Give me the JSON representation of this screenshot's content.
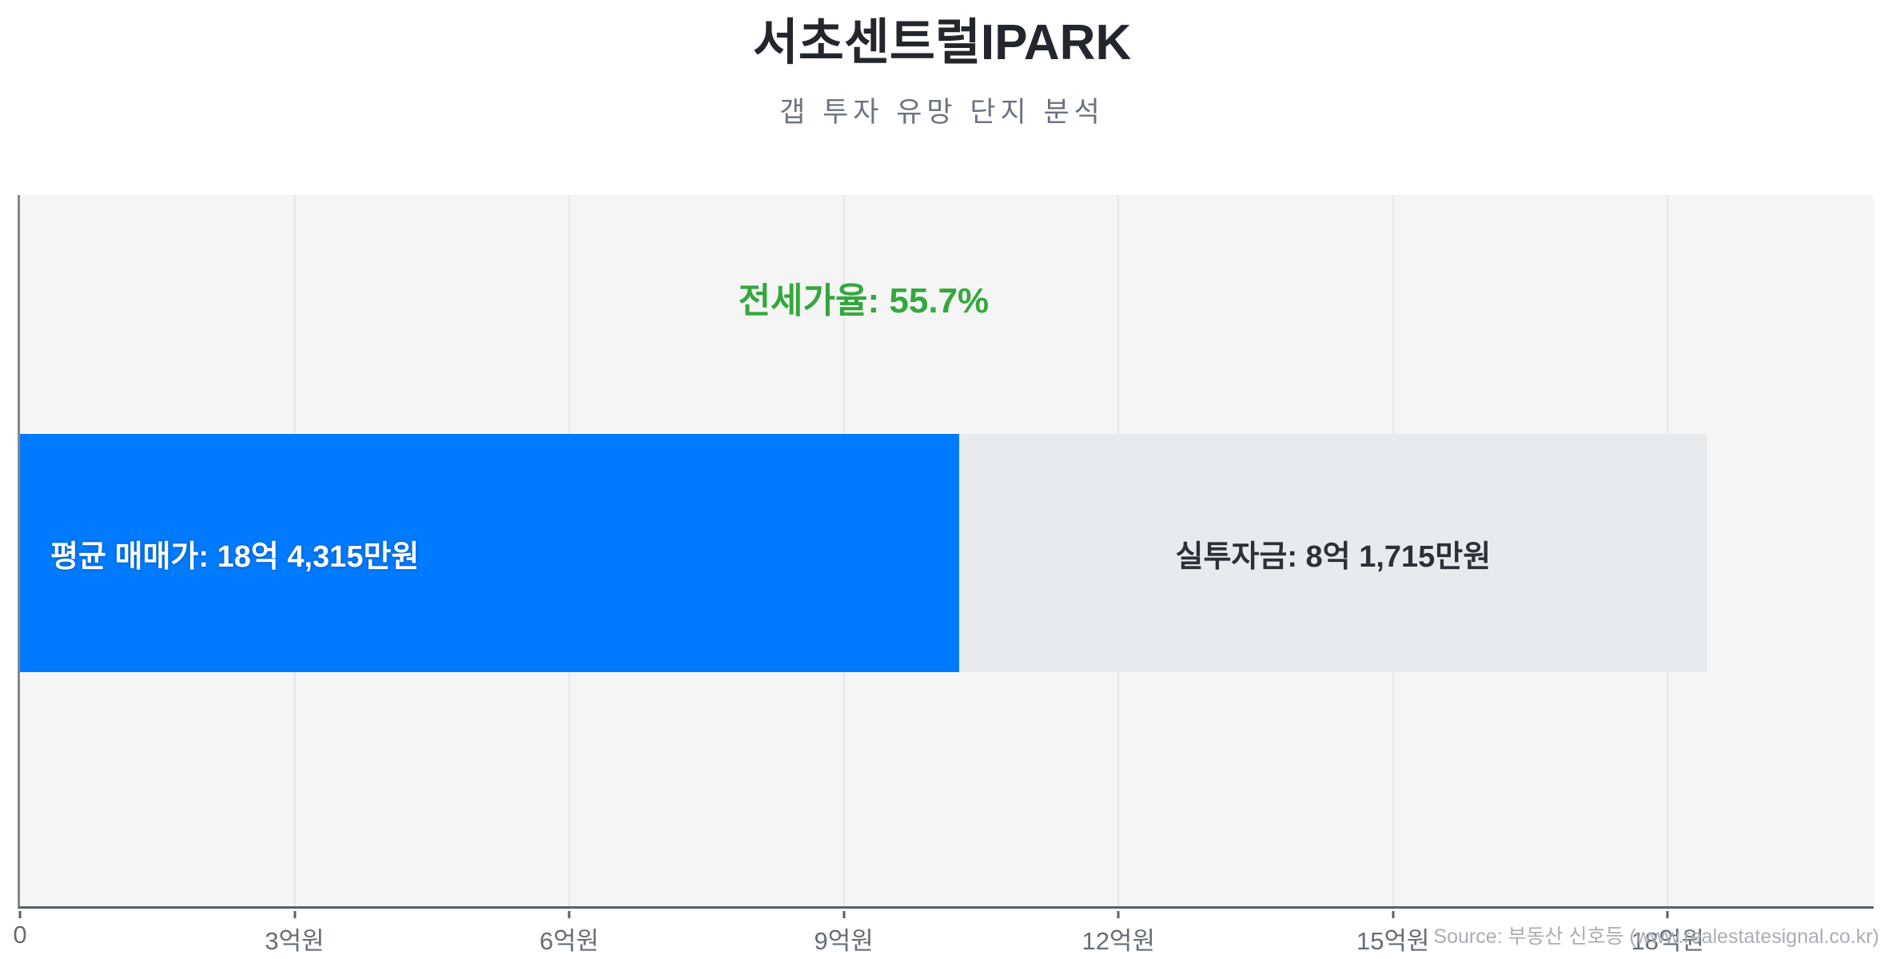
{
  "page": {
    "title": "서초센트럴IPARK",
    "subtitle": "갭 투자 유망 단지 분석",
    "source": "Source: 부동산 신호등 (www.realestatesignal.co.kr)"
  },
  "colors": {
    "sale_price_bar_blue": "#007bff",
    "net_investment_bar_gray": "#e8ebee",
    "annotation_green": "#34a83c",
    "plot_background": "#f5f5f5",
    "title_text": "#23272d",
    "subtitle_text": "#6b7280",
    "axis_text": "#666d76"
  },
  "chart_data": {
    "type": "bar",
    "orientation": "horizontal",
    "title": "서초센트럴IPARK",
    "subtitle": "갭 투자 유망 단지 분석",
    "grid": true,
    "legend": false,
    "annotation": {
      "text": "전세가율: 55.7%",
      "jeonse_ratio_pct": 55.7
    },
    "bar": {
      "total_value_eok": 18.4315,
      "segments": [
        {
          "name": "average-sale-price",
          "label": "평균 매매가: 18억 4,315만원",
          "value_eok": 10.26,
          "color": "#007bff",
          "text_color": "#ffffff"
        },
        {
          "name": "net-investment",
          "label": "실투자금: 8억 1,715만원",
          "value_eok": 8.1715,
          "color": "#e8ebee",
          "text_color": "#2b3138"
        }
      ]
    },
    "x_axis": {
      "unit": "억원",
      "max_value_eok": 20.25,
      "ticks": [
        {
          "value_eok": 0,
          "label": "0"
        },
        {
          "value_eok": 3,
          "label": "3억원"
        },
        {
          "value_eok": 6,
          "label": "6억원"
        },
        {
          "value_eok": 9,
          "label": "9억원"
        },
        {
          "value_eok": 12,
          "label": "12억원"
        },
        {
          "value_eok": 15,
          "label": "15억원"
        },
        {
          "value_eok": 18,
          "label": "18억원"
        }
      ]
    }
  }
}
